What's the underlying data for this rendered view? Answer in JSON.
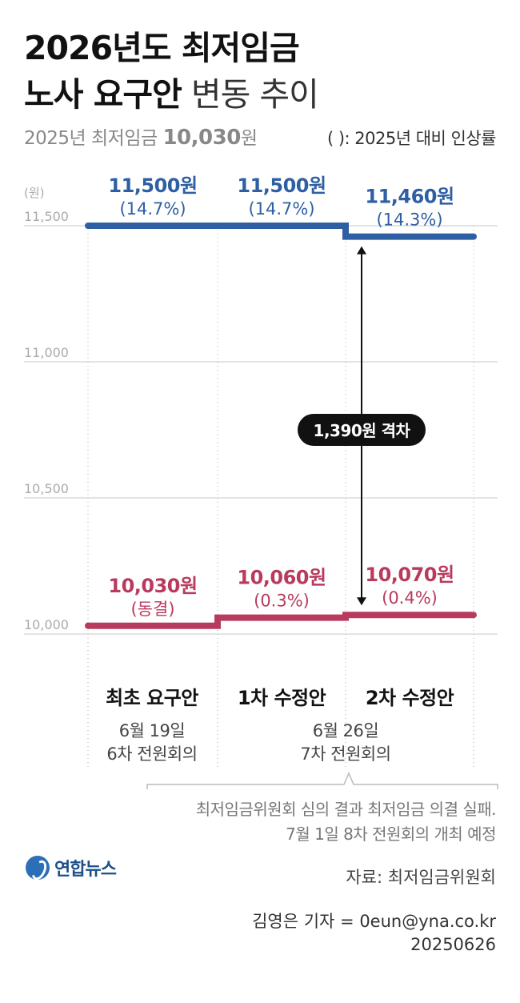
{
  "header": {
    "title_line1": "2026년도 최저임금",
    "title_line2_bold": "노사 요구안",
    "title_line2_light": " 변동 추이",
    "base_label": "2025년 최저임금 ",
    "base_value": "10,030",
    "base_unit": "원",
    "rate_note": "( ): 2025년 대비 인상률"
  },
  "chart_data": {
    "type": "line",
    "unit_label": "(원)",
    "y_ticks": [
      {
        "value": 11500,
        "label": "11,500"
      },
      {
        "value": 11000,
        "label": "11,000"
      },
      {
        "value": 10500,
        "label": "10,500"
      },
      {
        "value": 10000,
        "label": "10,000"
      }
    ],
    "ylim": [
      10000,
      11500
    ],
    "categories": [
      "최초 요구안",
      "1차 수정안",
      "2차 수정안"
    ],
    "series": [
      {
        "name": "labor",
        "color": "#2f5fa3",
        "values": [
          11500,
          11500,
          11460
        ],
        "labels": [
          "11,500원",
          "11,500원",
          "11,460원"
        ],
        "sublabels": [
          "(14.7%)",
          "(14.7%)",
          "(14.3%)"
        ]
      },
      {
        "name": "management",
        "color": "#b83b5e",
        "values": [
          10030,
          10060,
          10070
        ],
        "labels": [
          "10,030원",
          "10,060원",
          "10,070원"
        ],
        "sublabels": [
          "(동결)",
          "(0.3%)",
          "(0.4%)"
        ]
      }
    ],
    "gap_label": "1,390원 격차"
  },
  "stages": {
    "labels": [
      "최초 요구안",
      "1차 수정안",
      "2차 수정안"
    ],
    "date1_line1": "6월 19일",
    "date1_line2": "6차 전원회의",
    "date2_line1": "6월 26일",
    "date2_line2": "7차 전원회의"
  },
  "note": {
    "line1": "최저임금위원회 심의 결과 최저임금 의결 실패.",
    "line2": "7월 1일 8차 전원회의 개최 예정"
  },
  "footer": {
    "logo": "연합뉴스",
    "source": "자료: 최저임금위원회",
    "byline": "김영은 기자 = 0eun@yna.co.kr",
    "date": "20250626"
  }
}
